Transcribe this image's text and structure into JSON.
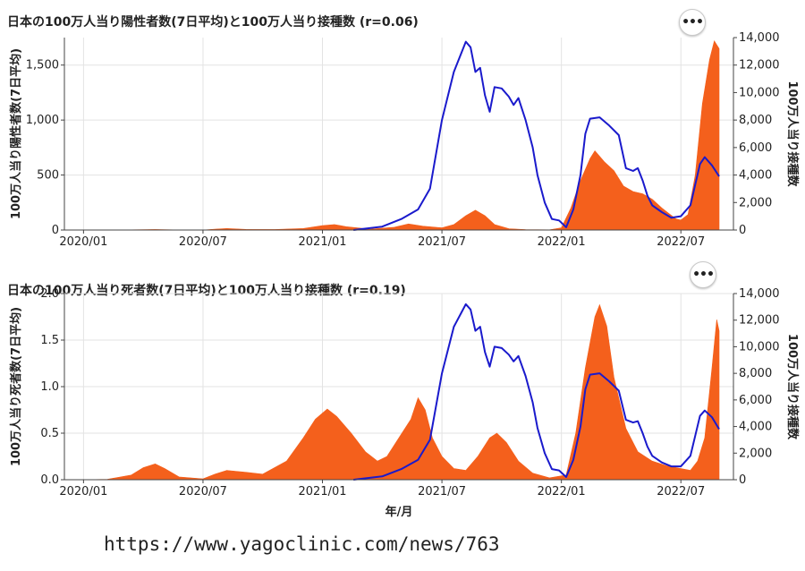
{
  "chart_data": [
    {
      "type": "bar+line",
      "title": "日本の100万人当り陽性者数(7日平均)と100万人当り接種数 (r=0.06)",
      "ylabel_left": "100万人当り陽性者数(7日平均)",
      "ylabel_right": "100万人当り接種数",
      "xlabel": "",
      "x_ticks": [
        "2020/01",
        "2020/07",
        "2021/01",
        "2021/07",
        "2022/01",
        "2022/07"
      ],
      "y_left_ticks": [
        "0",
        "500",
        "1,000",
        "1,500"
      ],
      "y_right_ticks": [
        "0",
        "2,000",
        "4,000",
        "6,000",
        "8,000",
        "10,000",
        "12,000",
        "14,000"
      ],
      "ylim_left": [
        0,
        1750
      ],
      "ylim_right": [
        0,
        14000
      ],
      "series": [
        {
          "name": "陽性者数",
          "kind": "area",
          "color": "#f4601c",
          "points": [
            [
              2020.0,
              0
            ],
            [
              2020.2,
              2
            ],
            [
              2020.3,
              5
            ],
            [
              2020.4,
              1
            ],
            [
              2020.5,
              0
            ],
            [
              2020.55,
              8
            ],
            [
              2020.6,
              14
            ],
            [
              2020.68,
              6
            ],
            [
              2020.8,
              5
            ],
            [
              2020.92,
              14
            ],
            [
              2021.0,
              40
            ],
            [
              2021.05,
              50
            ],
            [
              2021.1,
              30
            ],
            [
              2021.2,
              8
            ],
            [
              2021.3,
              25
            ],
            [
              2021.36,
              55
            ],
            [
              2021.42,
              35
            ],
            [
              2021.5,
              20
            ],
            [
              2021.55,
              50
            ],
            [
              2021.6,
              130
            ],
            [
              2021.64,
              180
            ],
            [
              2021.68,
              130
            ],
            [
              2021.72,
              50
            ],
            [
              2021.78,
              12
            ],
            [
              2021.85,
              4
            ],
            [
              2021.95,
              2
            ],
            [
              2022.0,
              20
            ],
            [
              2022.04,
              200
            ],
            [
              2022.08,
              450
            ],
            [
              2022.12,
              650
            ],
            [
              2022.14,
              720
            ],
            [
              2022.18,
              620
            ],
            [
              2022.22,
              540
            ],
            [
              2022.26,
              400
            ],
            [
              2022.3,
              350
            ],
            [
              2022.34,
              330
            ],
            [
              2022.38,
              280
            ],
            [
              2022.42,
              200
            ],
            [
              2022.45,
              150
            ],
            [
              2022.48,
              100
            ],
            [
              2022.5,
              90
            ],
            [
              2022.53,
              140
            ],
            [
              2022.56,
              500
            ],
            [
              2022.59,
              1150
            ],
            [
              2022.62,
              1550
            ],
            [
              2022.64,
              1720
            ],
            [
              2022.66,
              1650
            ]
          ]
        },
        {
          "name": "接種数",
          "kind": "line",
          "color": "#1a1acc",
          "points": [
            [
              2021.13,
              0
            ],
            [
              2021.25,
              250
            ],
            [
              2021.33,
              800
            ],
            [
              2021.4,
              1500
            ],
            [
              2021.45,
              3000
            ],
            [
              2021.5,
              8000
            ],
            [
              2021.55,
              11500
            ],
            [
              2021.6,
              13700
            ],
            [
              2021.62,
              13300
            ],
            [
              2021.64,
              11500
            ],
            [
              2021.66,
              11800
            ],
            [
              2021.68,
              9800
            ],
            [
              2021.7,
              8600
            ],
            [
              2021.72,
              10400
            ],
            [
              2021.75,
              10300
            ],
            [
              2021.78,
              9700
            ],
            [
              2021.8,
              9100
            ],
            [
              2021.82,
              9600
            ],
            [
              2021.85,
              8000
            ],
            [
              2021.88,
              6000
            ],
            [
              2021.9,
              4000
            ],
            [
              2021.93,
              2000
            ],
            [
              2021.96,
              800
            ],
            [
              2021.99,
              700
            ],
            [
              2022.02,
              200
            ],
            [
              2022.05,
              1500
            ],
            [
              2022.08,
              4000
            ],
            [
              2022.1,
              7000
            ],
            [
              2022.12,
              8100
            ],
            [
              2022.16,
              8200
            ],
            [
              2022.2,
              7600
            ],
            [
              2022.24,
              6900
            ],
            [
              2022.27,
              4500
            ],
            [
              2022.3,
              4300
            ],
            [
              2022.32,
              4500
            ],
            [
              2022.34,
              3600
            ],
            [
              2022.36,
              2500
            ],
            [
              2022.38,
              1800
            ],
            [
              2022.42,
              1300
            ],
            [
              2022.46,
              900
            ],
            [
              2022.5,
              1000
            ],
            [
              2022.54,
              1800
            ],
            [
              2022.58,
              4800
            ],
            [
              2022.6,
              5300
            ],
            [
              2022.63,
              4700
            ],
            [
              2022.66,
              3900
            ]
          ]
        }
      ]
    },
    {
      "type": "bar+line",
      "title": "日本の100万人当り死者数(7日平均)と100万人当り接種数 (r=0.19)",
      "ylabel_left": "100万人当り死者数(7日平均)",
      "ylabel_right": "100万人当り接種数",
      "xlabel": "年/月",
      "x_ticks": [
        "2020/01",
        "2020/07",
        "2021/01",
        "2021/07",
        "2022/01",
        "2022/07"
      ],
      "y_left_ticks": [
        "0.0",
        "0.5",
        "1.0",
        "1.5",
        "2.0"
      ],
      "y_right_ticks": [
        "0",
        "2,000",
        "4,000",
        "6,000",
        "8,000",
        "10,000",
        "12,000",
        "14,000"
      ],
      "ylim_left": [
        0,
        2.0
      ],
      "ylim_right": [
        0,
        14000
      ],
      "series": [
        {
          "name": "死者数",
          "kind": "area",
          "color": "#f4601c",
          "points": [
            [
              2020.0,
              0
            ],
            [
              2020.1,
              0.005
            ],
            [
              2020.2,
              0.05
            ],
            [
              2020.25,
              0.13
            ],
            [
              2020.3,
              0.17
            ],
            [
              2020.34,
              0.12
            ],
            [
              2020.4,
              0.03
            ],
            [
              2020.5,
              0.01
            ],
            [
              2020.55,
              0.06
            ],
            [
              2020.6,
              0.1
            ],
            [
              2020.68,
              0.08
            ],
            [
              2020.75,
              0.06
            ],
            [
              2020.85,
              0.2
            ],
            [
              2020.92,
              0.45
            ],
            [
              2020.97,
              0.65
            ],
            [
              2021.02,
              0.76
            ],
            [
              2021.06,
              0.68
            ],
            [
              2021.12,
              0.5
            ],
            [
              2021.18,
              0.3
            ],
            [
              2021.23,
              0.2
            ],
            [
              2021.27,
              0.25
            ],
            [
              2021.32,
              0.45
            ],
            [
              2021.37,
              0.65
            ],
            [
              2021.4,
              0.88
            ],
            [
              2021.43,
              0.75
            ],
            [
              2021.46,
              0.45
            ],
            [
              2021.5,
              0.25
            ],
            [
              2021.55,
              0.12
            ],
            [
              2021.6,
              0.1
            ],
            [
              2021.65,
              0.25
            ],
            [
              2021.7,
              0.45
            ],
            [
              2021.73,
              0.5
            ],
            [
              2021.77,
              0.4
            ],
            [
              2021.82,
              0.2
            ],
            [
              2021.88,
              0.07
            ],
            [
              2021.95,
              0.02
            ],
            [
              2022.02,
              0.05
            ],
            [
              2022.06,
              0.5
            ],
            [
              2022.1,
              1.2
            ],
            [
              2022.14,
              1.75
            ],
            [
              2022.16,
              1.88
            ],
            [
              2022.19,
              1.65
            ],
            [
              2022.22,
              1.1
            ],
            [
              2022.27,
              0.55
            ],
            [
              2022.32,
              0.3
            ],
            [
              2022.38,
              0.2
            ],
            [
              2022.44,
              0.15
            ],
            [
              2022.5,
              0.12
            ],
            [
              2022.54,
              0.1
            ],
            [
              2022.57,
              0.2
            ],
            [
              2022.6,
              0.45
            ],
            [
              2022.63,
              1.2
            ],
            [
              2022.65,
              1.72
            ],
            [
              2022.66,
              1.6
            ]
          ]
        },
        {
          "name": "接種数",
          "kind": "line",
          "color": "#1a1acc",
          "points": [
            [
              2021.13,
              0
            ],
            [
              2021.25,
              250
            ],
            [
              2021.33,
              800
            ],
            [
              2021.4,
              1500
            ],
            [
              2021.45,
              3000
            ],
            [
              2021.5,
              8000
            ],
            [
              2021.55,
              11500
            ],
            [
              2021.6,
              13200
            ],
            [
              2021.62,
              12800
            ],
            [
              2021.64,
              11200
            ],
            [
              2021.66,
              11500
            ],
            [
              2021.68,
              9600
            ],
            [
              2021.7,
              8500
            ],
            [
              2021.72,
              10000
            ],
            [
              2021.75,
              9900
            ],
            [
              2021.78,
              9400
            ],
            [
              2021.8,
              8900
            ],
            [
              2021.82,
              9300
            ],
            [
              2021.85,
              7800
            ],
            [
              2021.88,
              5800
            ],
            [
              2021.9,
              3900
            ],
            [
              2021.93,
              2000
            ],
            [
              2021.96,
              800
            ],
            [
              2021.99,
              700
            ],
            [
              2022.02,
              200
            ],
            [
              2022.05,
              1500
            ],
            [
              2022.08,
              4000
            ],
            [
              2022.1,
              6800
            ],
            [
              2022.12,
              7900
            ],
            [
              2022.16,
              8000
            ],
            [
              2022.2,
              7400
            ],
            [
              2022.24,
              6700
            ],
            [
              2022.27,
              4500
            ],
            [
              2022.3,
              4300
            ],
            [
              2022.32,
              4400
            ],
            [
              2022.34,
              3500
            ],
            [
              2022.36,
              2500
            ],
            [
              2022.38,
              1800
            ],
            [
              2022.42,
              1300
            ],
            [
              2022.46,
              1000
            ],
            [
              2022.5,
              1000
            ],
            [
              2022.54,
              1800
            ],
            [
              2022.58,
              4800
            ],
            [
              2022.6,
              5200
            ],
            [
              2022.63,
              4700
            ],
            [
              2022.66,
              3800
            ]
          ]
        }
      ]
    }
  ],
  "panels": [
    {
      "menu_label": "•••"
    },
    {
      "menu_label": "•••"
    }
  ],
  "source_url": "https://www.yagoclinic.com/news/763"
}
